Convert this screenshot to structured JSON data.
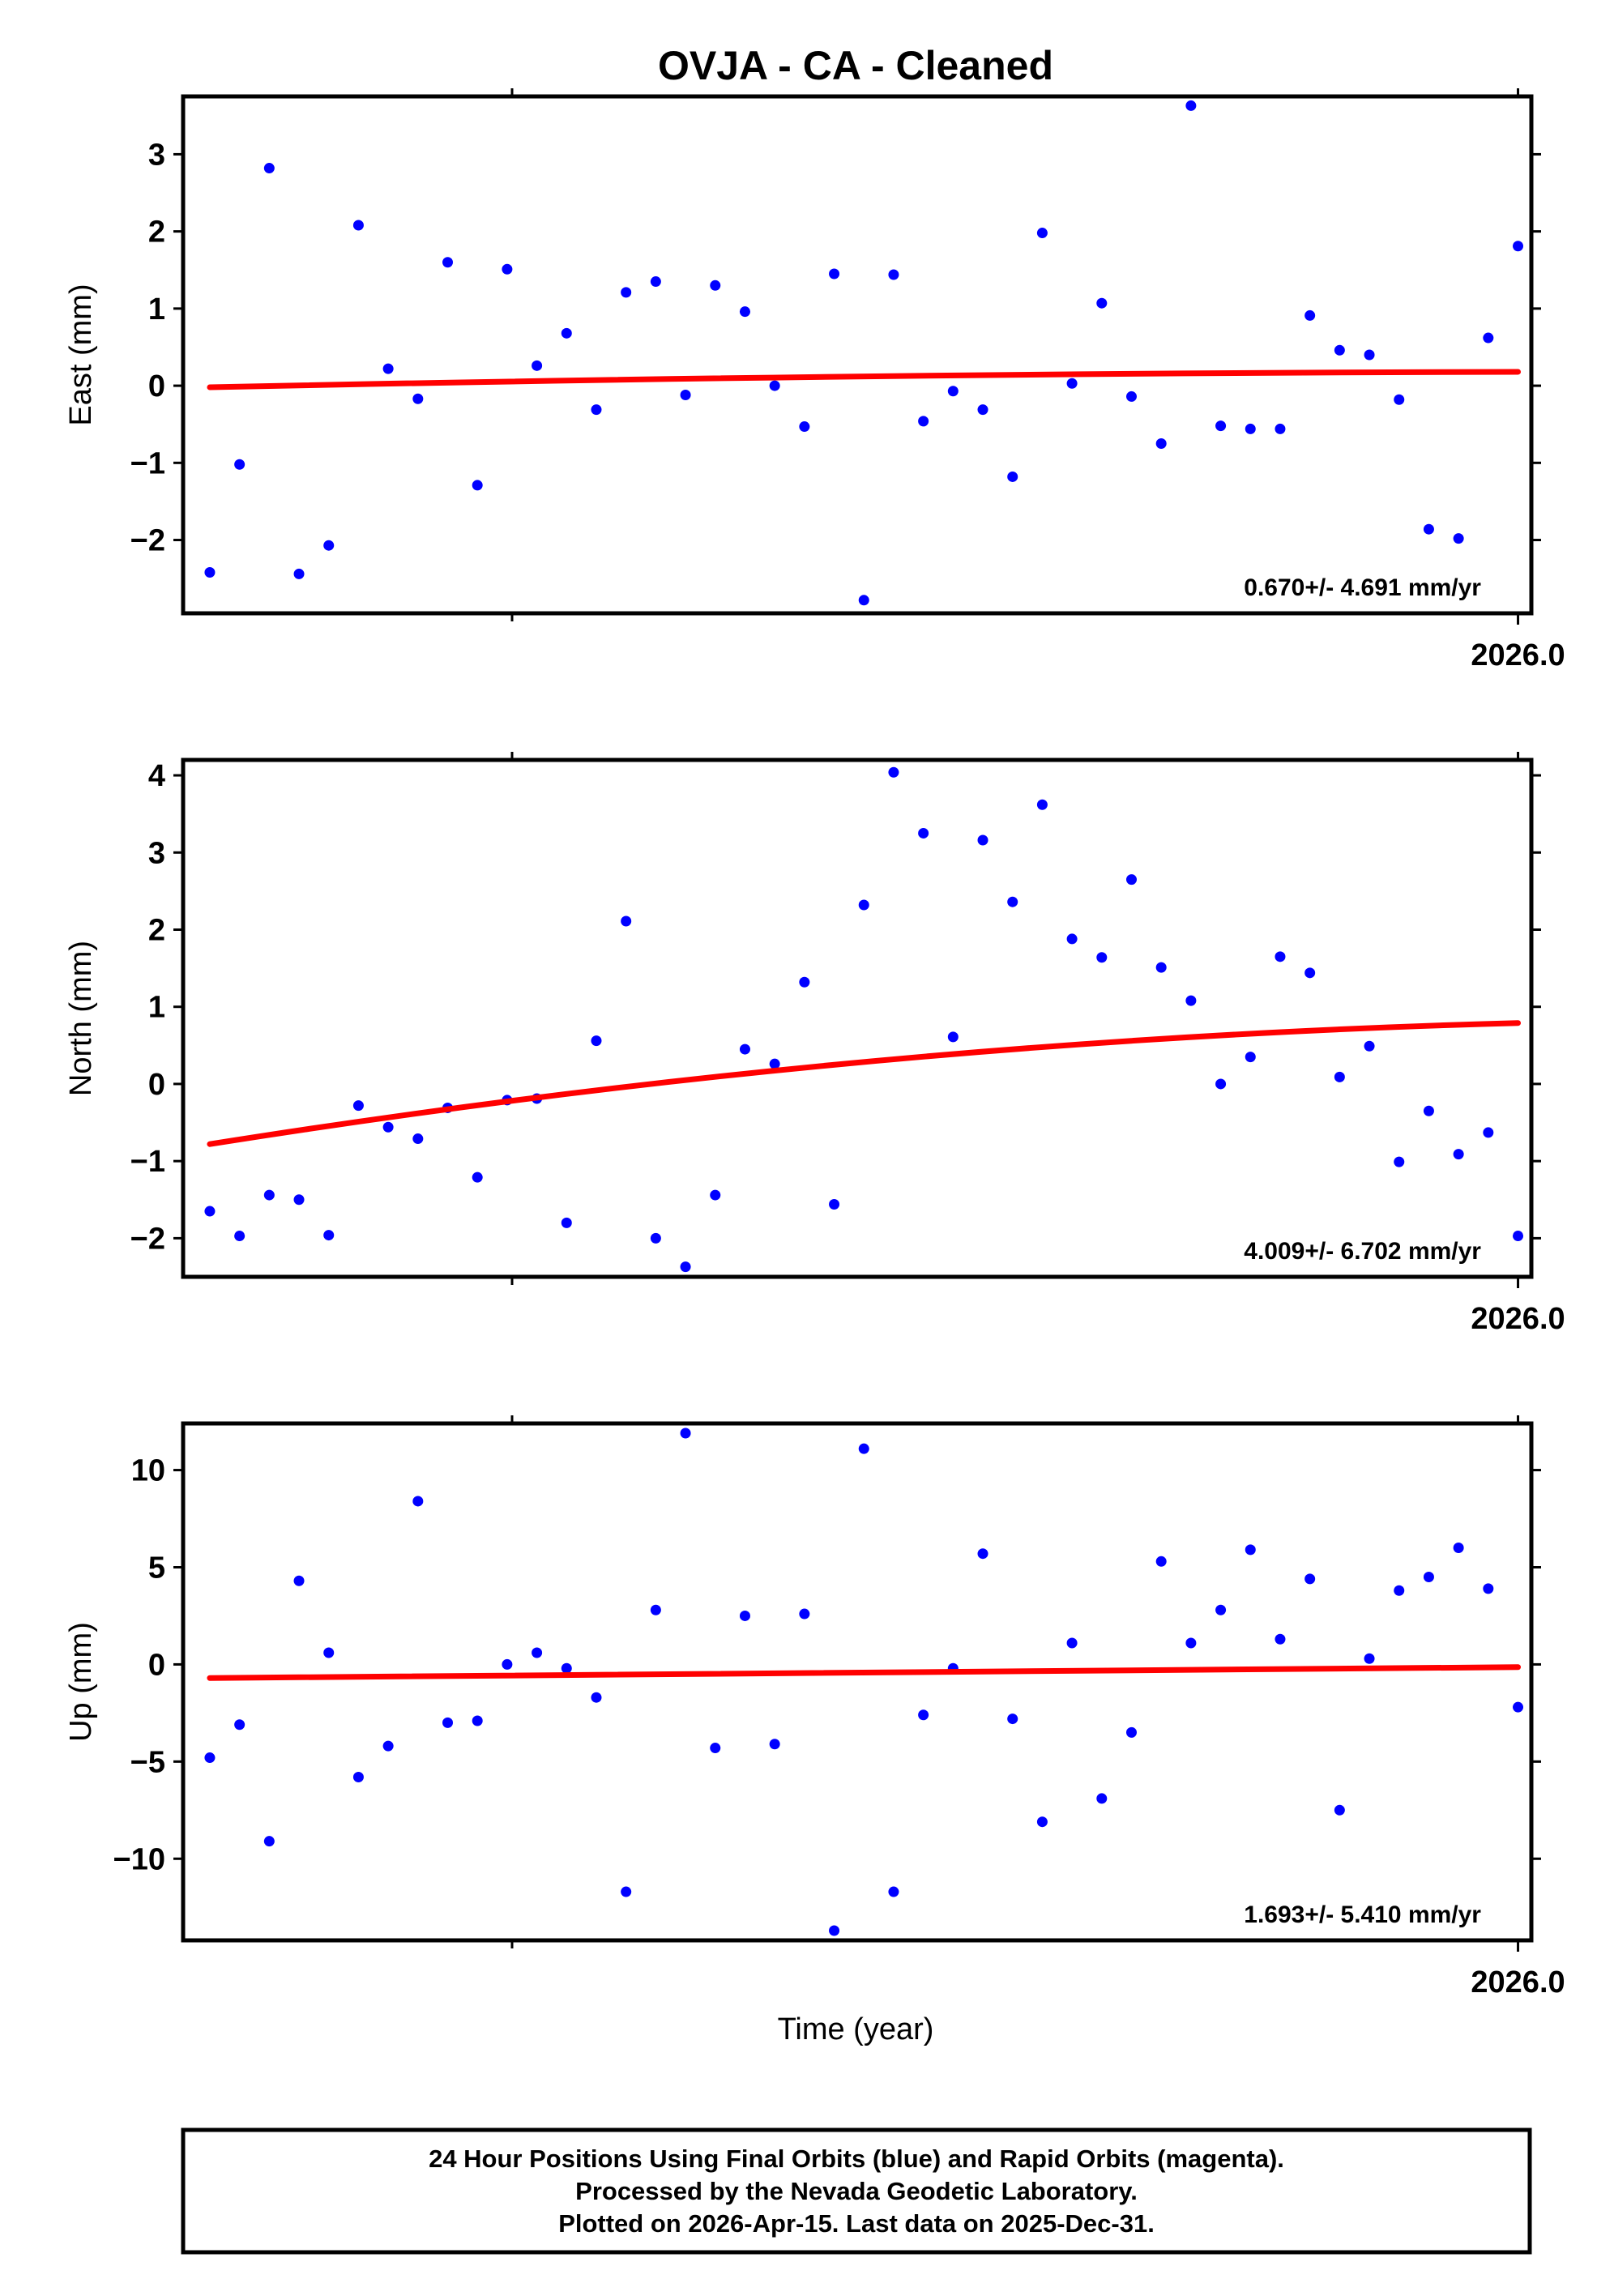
{
  "title": "OVJA  - CA - Cleaned",
  "xlabel": "Time (year)",
  "footer": {
    "line1": "24 Hour Positions Using Final Orbits (blue) and Rapid Orbits (magenta).",
    "line2": "Processed by the Nevada Geodetic Laboratory.",
    "line3": "Plotted on 2026-Apr-15. Last data on 2025-Dec-31."
  },
  "colors": {
    "points": "#0000ff",
    "trend": "#ff0000",
    "frame": "#000000"
  },
  "chart_data": [
    {
      "type": "scatter",
      "component": "east",
      "ylabel": "East (mm)",
      "ylim": [
        -2.95,
        3.75
      ],
      "yticks": [
        -2,
        -1,
        0,
        1,
        2,
        3
      ],
      "xlim": [
        2025.0,
        2026.01
      ],
      "x_tick_label": "2026.0",
      "rate_label": "0.670+/- 4.691 mm/yr",
      "trend": {
        "start": [
          2025.02,
          -0.02
        ],
        "end": [
          2026.0,
          0.18
        ]
      },
      "values": [
        -2.42,
        -1.02,
        2.82,
        -2.44,
        -2.07,
        2.08,
        0.22,
        -0.17,
        1.6,
        -1.29,
        1.51,
        0.26,
        0.68,
        -0.31,
        1.21,
        1.35,
        -0.12,
        1.3,
        0.96,
        0.0,
        -0.53,
        1.45,
        -2.78,
        1.44,
        -0.46,
        -0.07,
        -0.31,
        -1.18,
        1.98,
        0.03,
        1.07,
        -0.14,
        -0.75,
        3.63,
        -0.52,
        -0.56,
        -0.56,
        0.91,
        0.46,
        0.4,
        -0.18,
        -1.86,
        -1.98,
        0.62,
        1.81
      ]
    },
    {
      "type": "scatter",
      "component": "north",
      "ylabel": "North (mm)",
      "ylim": [
        -2.5,
        4.2
      ],
      "yticks": [
        -2,
        -1,
        0,
        1,
        2,
        3,
        4
      ],
      "xlim": [
        2025.0,
        2026.01
      ],
      "x_tick_label": "2026.0",
      "rate_label": "4.009+/- 6.702 mm/yr",
      "trend": {
        "start": [
          2025.02,
          -0.78
        ],
        "end": [
          2026.0,
          0.79
        ]
      },
      "values": [
        -1.65,
        -1.97,
        -1.44,
        -1.5,
        -1.96,
        -0.28,
        -0.56,
        -0.71,
        -0.31,
        -1.21,
        -0.21,
        -0.19,
        -1.8,
        0.56,
        2.11,
        -2.0,
        -2.37,
        -1.44,
        0.45,
        0.26,
        1.32,
        -1.56,
        2.32,
        4.04,
        3.25,
        0.61,
        3.16,
        2.36,
        3.62,
        1.88,
        1.64,
        2.65,
        1.51,
        1.08,
        0.0,
        0.35,
        1.65,
        1.44,
        0.09,
        0.49,
        -1.01,
        -0.35,
        -0.91,
        -0.63,
        -1.97
      ]
    },
    {
      "type": "scatter",
      "component": "up",
      "ylabel": "Up (mm)",
      "ylim": [
        -14.2,
        12.4
      ],
      "yticks": [
        -10,
        -5,
        0,
        5,
        10
      ],
      "xlim": [
        2025.0,
        2026.01
      ],
      "x_tick_label": "2026.0",
      "rate_label": "1.693+/- 5.410 mm/yr",
      "trend": {
        "start": [
          2025.02,
          -0.7
        ],
        "end": [
          2026.0,
          -0.14
        ]
      },
      "values": [
        -4.8,
        -3.1,
        -9.1,
        4.3,
        0.6,
        -5.8,
        -4.2,
        8.4,
        -3.0,
        -2.9,
        0.0,
        0.6,
        -0.2,
        -1.7,
        -11.7,
        2.8,
        11.9,
        -4.3,
        2.5,
        -4.1,
        2.6,
        -13.7,
        11.1,
        -11.7,
        -2.6,
        -0.2,
        5.7,
        -2.8,
        -8.1,
        1.1,
        -6.9,
        -3.5,
        5.3,
        1.1,
        2.8,
        5.9,
        1.3,
        4.4,
        -7.5,
        0.3,
        3.8,
        4.5,
        6.0,
        3.9,
        -2.2
      ]
    }
  ]
}
